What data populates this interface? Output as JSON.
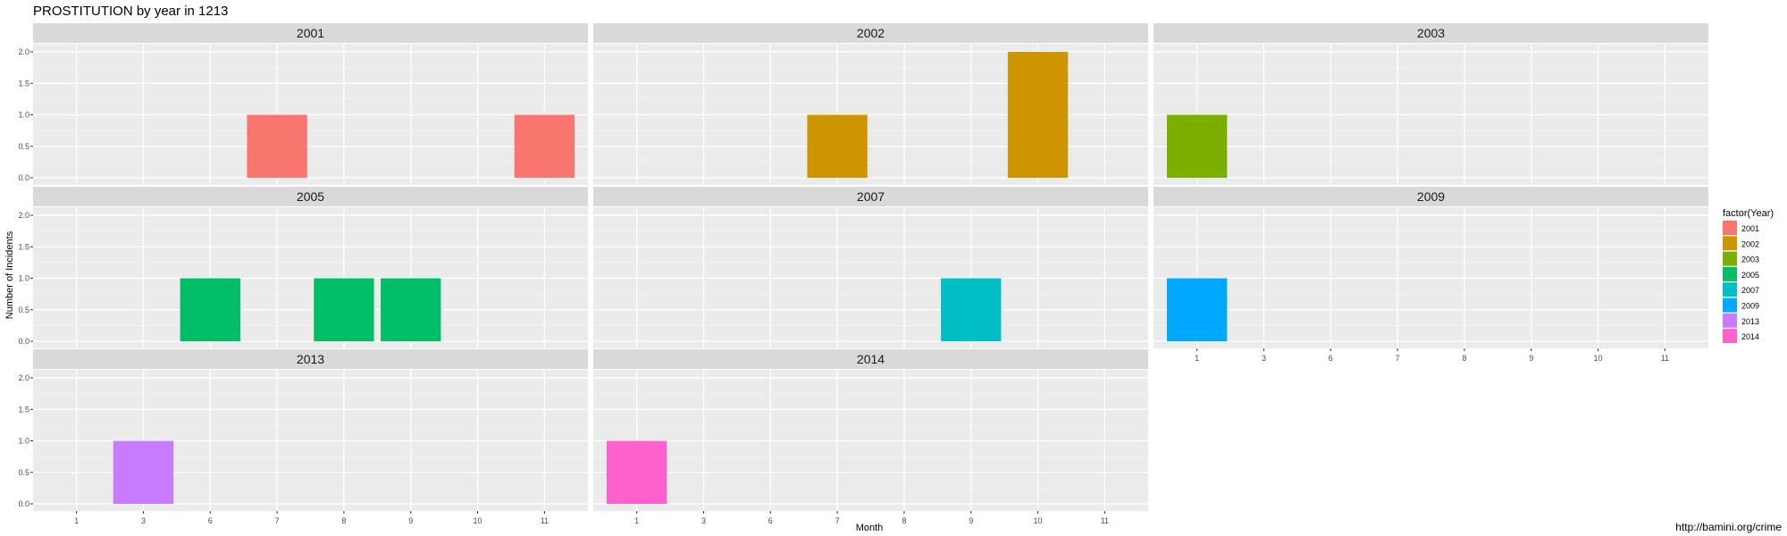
{
  "chart_data": {
    "type": "bar",
    "title": "PROSTITUTION by year in 1213",
    "xlabel": "Month",
    "ylabel": "Number of Incidents",
    "caption": "http://bamini.org/crime",
    "x_ticks": [
      "1",
      "3",
      "6",
      "7",
      "8",
      "9",
      "10",
      "11"
    ],
    "y_ticks": [
      "0.0",
      "0.5",
      "1.0",
      "1.5",
      "2.0"
    ],
    "ylim": [
      0,
      2.1
    ],
    "legend": {
      "title": "factor(Year)",
      "placement": "right",
      "entries": [
        {
          "label": "2001",
          "color": "#F8766D"
        },
        {
          "label": "2002",
          "color": "#CD9600"
        },
        {
          "label": "2003",
          "color": "#7CAE00"
        },
        {
          "label": "2005",
          "color": "#00BE67"
        },
        {
          "label": "2007",
          "color": "#00BFC4"
        },
        {
          "label": "2009",
          "color": "#00A9FF"
        },
        {
          "label": "2013",
          "color": "#C77CFF"
        },
        {
          "label": "2014",
          "color": "#FF61CC"
        }
      ]
    },
    "panels": [
      {
        "year": "2001",
        "bars": [
          {
            "month": "7",
            "value": 1
          },
          {
            "month": "11",
            "value": 1
          }
        ]
      },
      {
        "year": "2002",
        "bars": [
          {
            "month": "7",
            "value": 1
          },
          {
            "month": "10",
            "value": 2
          }
        ]
      },
      {
        "year": "2003",
        "bars": [
          {
            "month": "1",
            "value": 1
          }
        ]
      },
      {
        "year": "2005",
        "bars": [
          {
            "month": "6",
            "value": 1
          },
          {
            "month": "8",
            "value": 1
          },
          {
            "month": "9",
            "value": 1
          }
        ]
      },
      {
        "year": "2007",
        "bars": [
          {
            "month": "9",
            "value": 1
          }
        ]
      },
      {
        "year": "2009",
        "bars": [
          {
            "month": "1",
            "value": 1
          }
        ]
      },
      {
        "year": "2013",
        "bars": [
          {
            "month": "3",
            "value": 1
          }
        ]
      },
      {
        "year": "2014",
        "bars": [
          {
            "month": "1",
            "value": 1
          }
        ]
      }
    ]
  }
}
